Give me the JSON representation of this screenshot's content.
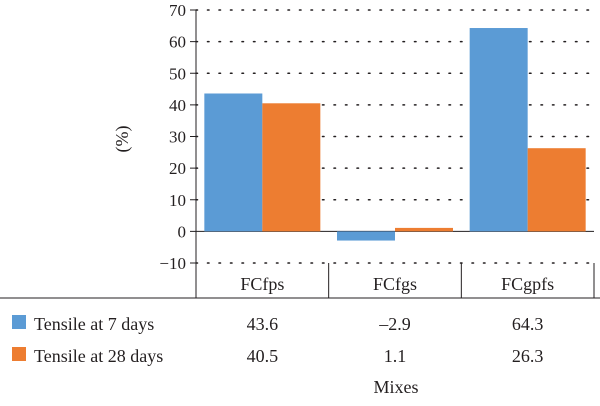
{
  "chart_data": {
    "type": "bar",
    "categories": [
      "FCfps",
      "FCfgs",
      "FCgpfs"
    ],
    "series": [
      {
        "name": "Tensile at 7 days",
        "values": [
          43.6,
          -2.9,
          64.3
        ],
        "color": "#5b9bd5"
      },
      {
        "name": "Tensile at 28 days",
        "values": [
          40.5,
          1.1,
          26.3
        ],
        "color": "#ed7d31"
      }
    ],
    "ylim": [
      -10,
      70
    ],
    "yticks": [
      -10,
      0,
      10,
      20,
      30,
      40,
      50,
      60,
      70
    ],
    "ylabel": "(%)",
    "xlabel": "Mixes",
    "grid": "horizontal-dotted",
    "legend": "data-table-below",
    "data_table": {
      "rows": [
        {
          "label": "Tensile at 7 days",
          "values": [
            "43.6",
            "–2.9",
            "64.3"
          ]
        },
        {
          "label": "Tensile at 28 days",
          "values": [
            "40.5",
            "1.1",
            "26.3"
          ]
        }
      ]
    }
  }
}
